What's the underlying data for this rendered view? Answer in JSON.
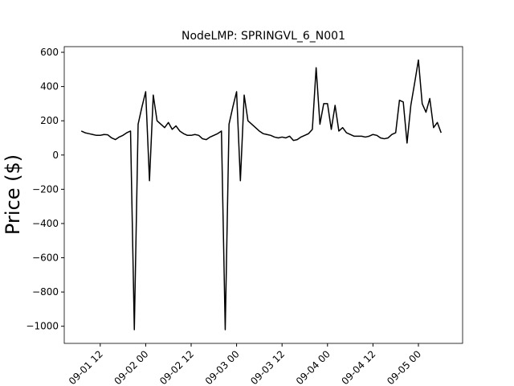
{
  "chart_data": {
    "type": "line",
    "title": "NodeLMP: SPRINGVL_6_N001",
    "y_label": "Price ($)",
    "x": [
      "09-01 07",
      "09-01 08",
      "09-01 09",
      "09-01 10",
      "09-01 11",
      "09-01 12",
      "09-01 13",
      "09-01 14",
      "09-01 15",
      "09-01 16",
      "09-01 17",
      "09-01 18",
      "09-01 19",
      "09-01 20",
      "09-01 21",
      "09-01 22",
      "09-01 23",
      "09-02 00",
      "09-02 01",
      "09-02 02",
      "09-02 03",
      "09-02 04",
      "09-02 05",
      "09-02 06",
      "09-02 07",
      "09-02 08",
      "09-02 09",
      "09-02 10",
      "09-02 11",
      "09-02 12",
      "09-02 13",
      "09-02 14",
      "09-02 15",
      "09-02 16",
      "09-02 17",
      "09-02 18",
      "09-02 19",
      "09-02 20",
      "09-02 21",
      "09-02 22",
      "09-02 23",
      "09-03 00",
      "09-03 01",
      "09-03 02",
      "09-03 03",
      "09-03 04",
      "09-03 05",
      "09-03 06",
      "09-03 07",
      "09-03 08",
      "09-03 09",
      "09-03 10",
      "09-03 11",
      "09-03 12",
      "09-03 13",
      "09-03 14",
      "09-03 15",
      "09-03 16",
      "09-03 17",
      "09-03 18",
      "09-03 19",
      "09-03 20",
      "09-03 21",
      "09-03 22",
      "09-03 23",
      "09-04 00",
      "09-04 01",
      "09-04 02",
      "09-04 03",
      "09-04 04",
      "09-04 05",
      "09-04 06",
      "09-04 07",
      "09-04 08",
      "09-04 09",
      "09-04 10",
      "09-04 11",
      "09-04 12",
      "09-04 13",
      "09-04 14",
      "09-04 15",
      "09-04 16",
      "09-04 17",
      "09-04 18",
      "09-04 19",
      "09-04 20",
      "09-04 21",
      "09-04 22",
      "09-04 23",
      "09-05 00",
      "09-05 01",
      "09-05 02",
      "09-05 03",
      "09-05 04",
      "09-05 05",
      "09-05 06"
    ],
    "series": [
      {
        "name": "SPRINGVL_6_N001",
        "color": "#000000",
        "values": [
          140,
          130,
          125,
          120,
          115,
          115,
          120,
          118,
          100,
          90,
          105,
          115,
          130,
          140,
          -1020,
          180,
          280,
          370,
          -150,
          350,
          200,
          180,
          160,
          190,
          150,
          170,
          140,
          125,
          115,
          115,
          120,
          115,
          95,
          90,
          105,
          115,
          125,
          140,
          -1020,
          180,
          280,
          370,
          -150,
          350,
          200,
          180,
          160,
          140,
          125,
          120,
          115,
          105,
          100,
          105,
          100,
          110,
          85,
          90,
          105,
          115,
          125,
          150,
          510,
          180,
          300,
          300,
          150,
          290,
          140,
          160,
          130,
          120,
          110,
          110,
          110,
          105,
          110,
          120,
          115,
          100,
          95,
          100,
          120,
          130,
          320,
          310,
          70,
          290,
          420,
          555,
          300,
          250,
          330,
          160,
          190,
          130
        ]
      }
    ],
    "xlim": [
      "09-01 02:30",
      "09-05 11:40"
    ],
    "xticks": [
      "09-01 12",
      "09-02 00",
      "09-02 12",
      "09-03 00",
      "09-03 12",
      "09-04 00",
      "09-04 12",
      "09-05 00"
    ],
    "ylim": [
      -1100,
      633
    ],
    "yticks": [
      {
        "value": -1000,
        "label": "−1000"
      },
      {
        "value": -800,
        "label": "−800"
      },
      {
        "value": -600,
        "label": "−600"
      },
      {
        "value": -400,
        "label": "−400"
      },
      {
        "value": -200,
        "label": "−200"
      },
      0,
      200,
      400,
      600
    ]
  }
}
